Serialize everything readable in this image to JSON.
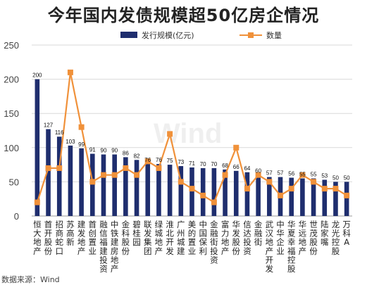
{
  "chart_data": {
    "type": "bar",
    "title": "今年国内发债规模超50亿房企情况",
    "source": "数据来源：Wind",
    "watermark": "Wind",
    "categories": [
      "恒大地产",
      "首开股份",
      "招商蛇口",
      "苏高新",
      "建发地产",
      "首创置业",
      "融信福建投资",
      "中铁建房地产",
      "金科股份",
      "碧桂园",
      "联发集团",
      "绿城地产",
      "淮北开发",
      "广州城建",
      "美的置业",
      "中国保利",
      "金融街投资",
      "富力地产",
      "华发股份",
      "信达投资",
      "金融街",
      "武汉地产开发",
      "中华企业",
      "华夏幸福控股",
      "华远地产",
      "世茂股份",
      "陆家嘴",
      "龙光控股",
      "万科A"
    ],
    "ylim": [
      0,
      250
    ],
    "yticks": [
      0,
      50,
      100,
      150,
      200,
      250
    ],
    "grid": true,
    "legend_position": "top-right",
    "series": [
      {
        "name": "发行规模(亿元)",
        "type": "bar",
        "color": "#1f2e6e",
        "values": [
          200,
          127,
          116,
          103,
          99,
          91,
          90,
          90,
          86,
          82,
          76,
          76,
          75,
          73,
          71,
          70,
          70,
          68,
          66,
          64,
          60,
          57,
          57,
          56,
          55,
          55,
          53,
          50,
          50
        ],
        "labels": [
          "200",
          "127",
          "116",
          "103",
          "99",
          "91",
          "90",
          "90",
          "86",
          "82",
          "76",
          "76",
          "75",
          "73",
          "71",
          "70",
          "70",
          "68",
          "66",
          "64",
          "60",
          "57",
          "57",
          "56",
          "55",
          "55",
          "53",
          "50",
          "50"
        ]
      },
      {
        "name": "数量",
        "type": "line",
        "color": "#f0913a",
        "values": [
          20,
          70,
          70,
          210,
          130,
          50,
          60,
          60,
          70,
          60,
          80,
          70,
          120,
          50,
          40,
          30,
          20,
          60,
          100,
          40,
          60,
          50,
          30,
          40,
          60,
          50,
          40,
          40,
          30
        ]
      }
    ]
  }
}
